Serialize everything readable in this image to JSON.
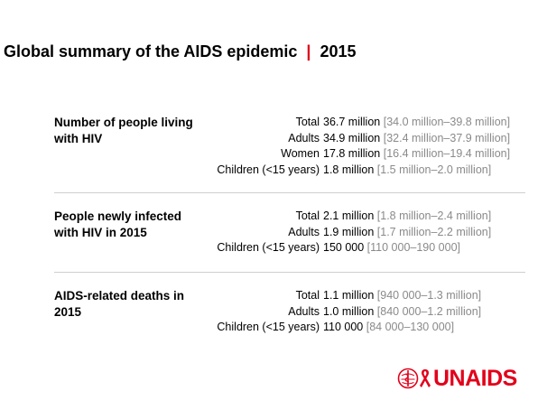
{
  "title": {
    "main": "Global summary of the AIDS epidemic",
    "separator": "|",
    "year": "2015"
  },
  "sections": [
    {
      "heading": "Number of people living with HIV",
      "rows": [
        {
          "category": "Total",
          "value": "36.7 million",
          "range": "[34.0 million–39.8 million]"
        },
        {
          "category": "Adults",
          "value": "34.9 million",
          "range": "[32.4 million–37.9 million]"
        },
        {
          "category": "Women",
          "value": "17.8 million",
          "range": "[16.4 million–19.4 million]"
        },
        {
          "category": "Children (<15 years)",
          "value": "1.8 million",
          "range": "[1.5 million–2.0 million]"
        }
      ]
    },
    {
      "heading": "People newly infected with HIV in 2015",
      "rows": [
        {
          "category": "Total",
          "value": "2.1 million",
          "range": "[1.8 million–2.4 million]"
        },
        {
          "category": "Adults",
          "value": "1.9 million",
          "range": "[1.7 million–2.2 million]"
        },
        {
          "category": "Children (<15 years)",
          "value": "150 000",
          "range": "[110 000–190 000]"
        }
      ]
    },
    {
      "heading": "AIDS-related deaths in 2015",
      "rows": [
        {
          "category": "Total",
          "value": "1.1 million",
          "range": "[940 000–1.3 million]"
        },
        {
          "category": "Adults",
          "value": "1.0 million",
          "range": "[840 000–1.2 million]"
        },
        {
          "category": "Children (<15 years)",
          "value": "110 000",
          "range": "[84 000–130 000]"
        }
      ]
    }
  ],
  "logo": {
    "text": "UNAIDS",
    "icons": [
      "who-emblem-icon",
      "red-ribbon-icon"
    ],
    "brand_color": "#e2001a"
  }
}
